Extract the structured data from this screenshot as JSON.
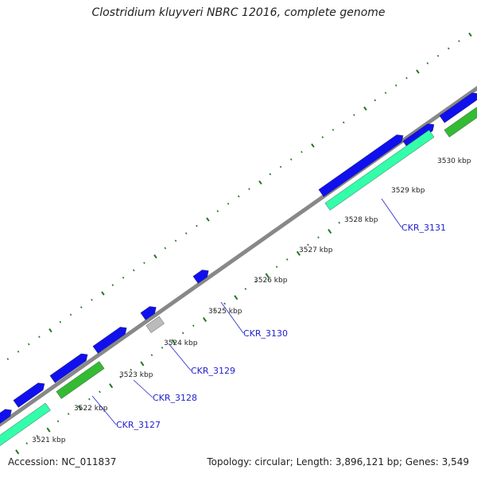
{
  "title": "Clostridium kluyveri NBRC 12016, complete genome",
  "footer": {
    "accession": "Accession: NC_011837",
    "summary": "Topology: circular; Length: 3,896,121 bp; Genes: 3,549"
  },
  "colors": {
    "backbone": "#888888",
    "cds": "#1010ee",
    "gene_teal": "#33ffaa",
    "gene_green": "#33bb33",
    "pseudo": "#bbbbbb",
    "tick": "#227722",
    "gene_label": "#2222cc"
  },
  "scale_labels": [
    "3521 kbp",
    "3522 kbp",
    "3523 kbp",
    "3524 kbp",
    "3525 kbp",
    "3526 kbp",
    "3527 kbp",
    "3528 kbp",
    "3529 kbp",
    "3530 kbp"
  ],
  "gene_labels": [
    "CKR_3127",
    "CKR_3128",
    "CKR_3129",
    "CKR_3130",
    "CKR_3131"
  ]
}
